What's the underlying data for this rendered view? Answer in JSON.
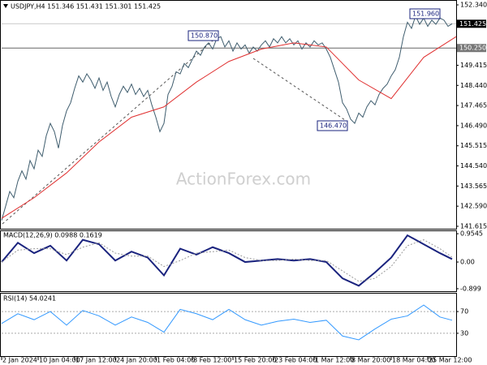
{
  "chart_data": [
    {
      "type": "line",
      "title": "USDJPY,H4 151.346 151.431 151.301 151.425",
      "watermark": "ActionForex.com",
      "ylim": [
        141.458,
        152.576
      ],
      "xlim": [
        0,
        112
      ],
      "yticks": [
        141.615,
        {
          "value": 142.59,
          "label": "142.590"
        },
        143.565,
        {
          "value": 144.54,
          "label": "144.540"
        },
        145.515,
        {
          "value": 146.49,
          "label": "146.490"
        },
        147.465,
        {
          "value": 148.44,
          "label": "148.440"
        },
        149.415,
        {
          "value": 152.34,
          "label": "152.340"
        }
      ],
      "price_labels": [
        {
          "value": 151.425,
          "label": "151.425"
        },
        {
          "value": 150.25,
          "label": "150.250"
        }
      ],
      "annotations": [
        "150.870",
        "146.470",
        "151.960"
      ],
      "series": [
        {
          "color": "#3f5d6e",
          "x": [
            0,
            1,
            2,
            3,
            4,
            5,
            6,
            7,
            8,
            9,
            10,
            11,
            12,
            13,
            14,
            15,
            16,
            17,
            18,
            19,
            20,
            21,
            22,
            23,
            24,
            25,
            26,
            27,
            28,
            29,
            30,
            31,
            32,
            33,
            34,
            35,
            36,
            37,
            38,
            39,
            40,
            41,
            42,
            43,
            44,
            45,
            46,
            47,
            48,
            49,
            50,
            51,
            52,
            53,
            54,
            55,
            56,
            57,
            58,
            59,
            60,
            61,
            62,
            63,
            64,
            65,
            66,
            67,
            68,
            69,
            70,
            71,
            72,
            73,
            74,
            75,
            76,
            77,
            78,
            79,
            80,
            81,
            82,
            83,
            84,
            85,
            86,
            87,
            88,
            89,
            90,
            91,
            92,
            93,
            94,
            95,
            96,
            97,
            98,
            99,
            100,
            101,
            102,
            103,
            104,
            105,
            106,
            107,
            108,
            109,
            110,
            111
          ],
          "values": [
            141.9,
            142.6,
            143.3,
            143.0,
            143.8,
            144.3,
            143.9,
            144.8,
            144.4,
            145.3,
            145.0,
            146.0,
            146.6,
            146.2,
            145.4,
            146.5,
            147.2,
            147.6,
            148.3,
            148.9,
            148.6,
            149.0,
            148.7,
            148.3,
            148.8,
            148.2,
            148.6,
            147.9,
            147.4,
            148.0,
            148.4,
            148.1,
            148.5,
            148.0,
            148.3,
            147.9,
            148.2,
            147.5,
            146.9,
            146.2,
            146.6,
            148.0,
            148.4,
            149.1,
            149.0,
            149.5,
            149.3,
            149.7,
            150.1,
            149.9,
            150.3,
            150.5,
            150.2,
            150.7,
            150.8,
            150.3,
            150.6,
            150.1,
            150.5,
            150.2,
            150.4,
            150.0,
            150.3,
            150.1,
            150.4,
            150.6,
            150.3,
            150.7,
            150.5,
            150.8,
            150.5,
            150.7,
            150.4,
            150.6,
            150.2,
            150.5,
            150.3,
            150.6,
            150.4,
            150.5,
            150.2,
            149.8,
            149.2,
            148.6,
            147.6,
            147.3,
            146.8,
            146.6,
            147.1,
            146.9,
            147.4,
            147.7,
            147.5,
            148.0,
            148.3,
            148.5,
            148.9,
            149.2,
            149.8,
            150.8,
            151.5,
            151.2,
            151.8,
            151.4,
            151.7,
            151.3,
            151.6,
            151.4,
            151.7,
            151.6,
            151.3,
            151.425
          ]
        },
        {
          "color": "#e03030",
          "x": [
            0,
            8,
            16,
            24,
            32,
            40,
            48,
            56,
            64,
            72,
            80,
            88,
            96,
            104,
            112
          ],
          "values": [
            142.0,
            143.0,
            144.2,
            145.7,
            146.9,
            147.4,
            148.6,
            149.6,
            150.2,
            150.5,
            150.3,
            148.7,
            147.8,
            149.8,
            150.8
          ]
        }
      ]
    },
    {
      "type": "line",
      "title": "MACD(12,26,9) 0.0988 0.1619",
      "ylim": [
        -1.01,
        1.04
      ],
      "xlim": [
        0,
        112
      ],
      "yticks": [
        0.9545,
        {
          "value": 0,
          "label": "0.00"
        },
        -0.899
      ],
      "series": [
        {
          "color": "#1a237e",
          "width": 2,
          "x": [
            0,
            4,
            8,
            12,
            16,
            20,
            24,
            28,
            32,
            36,
            40,
            44,
            48,
            52,
            56,
            60,
            64,
            68,
            72,
            76,
            80,
            84,
            88,
            92,
            96,
            100,
            104,
            108,
            111
          ],
          "values": [
            0.0,
            0.65,
            0.3,
            0.55,
            0.05,
            0.75,
            0.6,
            0.05,
            0.35,
            0.15,
            -0.45,
            0.45,
            0.25,
            0.5,
            0.3,
            0.0,
            0.05,
            0.1,
            0.05,
            0.1,
            0.0,
            -0.55,
            -0.8,
            -0.35,
            0.15,
            0.9,
            0.6,
            0.3,
            0.0988
          ]
        },
        {
          "color": "#999999",
          "width": 1,
          "dashed": true,
          "x": [
            0,
            4,
            8,
            12,
            16,
            20,
            24,
            28,
            32,
            36,
            40,
            44,
            48,
            52,
            56,
            60,
            64,
            68,
            72,
            76,
            80,
            84,
            88,
            92,
            96,
            100,
            104,
            108,
            111
          ],
          "values": [
            0.0,
            0.4,
            0.45,
            0.45,
            0.25,
            0.5,
            0.65,
            0.3,
            0.2,
            0.2,
            -0.15,
            0.05,
            0.3,
            0.35,
            0.4,
            0.15,
            0.05,
            0.05,
            0.1,
            0.05,
            0.05,
            -0.3,
            -0.65,
            -0.55,
            -0.15,
            0.55,
            0.75,
            0.45,
            0.1619
          ]
        }
      ]
    },
    {
      "type": "line",
      "title": "RSI(14) 54.0241",
      "grid": true,
      "ylim": [
        0,
        100
      ],
      "xlim": [
        0,
        112
      ],
      "yticks": [
        70,
        30
      ],
      "xticks": [
        {
          "value": 0,
          "label": "2 Jan 2024"
        },
        {
          "value": 9,
          "label": "10 Jan 04:00"
        },
        {
          "value": 18,
          "label": "17 Jan 12:00"
        },
        {
          "value": 28,
          "label": "24 Jan 20:00"
        },
        {
          "value": 38,
          "label": "1 Feb 04:00"
        },
        {
          "value": 47,
          "label": "8 Feb 12:00"
        },
        {
          "value": 57,
          "label": "15 Feb 20:00"
        },
        {
          "value": 67,
          "label": "23 Feb 04:00"
        },
        {
          "value": 77,
          "label": "1 Mar 12:00"
        },
        {
          "value": 86,
          "label": "8 Mar 20:00"
        },
        {
          "value": 96,
          "label": "18 Mar 04:00"
        },
        {
          "value": 105,
          "label": "25 Mar 12:00"
        }
      ],
      "series": [
        {
          "color": "#3399ff",
          "width": 1,
          "x": [
            0,
            4,
            8,
            12,
            16,
            20,
            24,
            28,
            32,
            36,
            40,
            44,
            48,
            52,
            56,
            60,
            64,
            68,
            72,
            76,
            80,
            84,
            88,
            92,
            96,
            100,
            104,
            108,
            111
          ],
          "values": [
            48,
            66,
            55,
            70,
            45,
            72,
            62,
            45,
            60,
            50,
            32,
            74,
            66,
            55,
            74,
            55,
            45,
            52,
            56,
            50,
            54,
            25,
            18,
            38,
            56,
            62,
            82,
            60,
            54.0241
          ]
        }
      ]
    }
  ]
}
